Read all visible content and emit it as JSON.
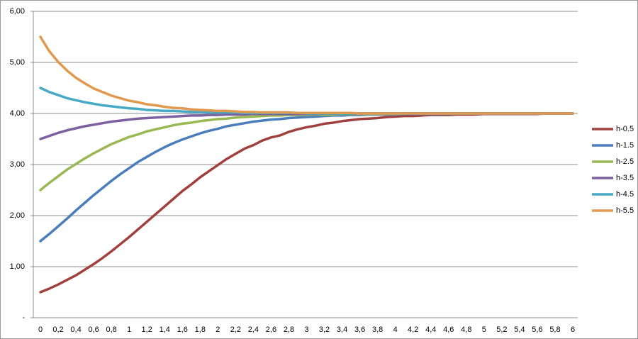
{
  "chart_data": {
    "type": "line",
    "categories": [
      "0",
      null,
      "0,2",
      null,
      "0,4",
      null,
      "0,6",
      null,
      "0,8",
      null,
      "1",
      null,
      "1,2",
      null,
      "1,4",
      null,
      "1,6",
      null,
      "1,8",
      null,
      "2",
      null,
      "2,2",
      null,
      "2,4",
      null,
      "2,6",
      null,
      "2,8",
      null,
      "3",
      null,
      "3,2",
      null,
      "3,4",
      null,
      "3,6",
      null,
      "3,8",
      null,
      "4",
      null,
      "4,2",
      null,
      "4,4",
      null,
      "4,6",
      null,
      "4,8",
      null,
      "5",
      null,
      "5,2",
      null,
      "5,4",
      null,
      "5,6",
      null,
      "5,8",
      null,
      "6"
    ],
    "series": [
      {
        "name": "h-0.5",
        "color": "#a0413d",
        "values": [
          0.5,
          0.57,
          0.65,
          0.74,
          0.83,
          0.94,
          1.05,
          1.17,
          1.3,
          1.44,
          1.58,
          1.73,
          1.88,
          2.03,
          2.18,
          2.33,
          2.48,
          2.61,
          2.75,
          2.87,
          2.99,
          3.11,
          3.21,
          3.31,
          3.38,
          3.47,
          3.53,
          3.57,
          3.64,
          3.69,
          3.73,
          3.76,
          3.8,
          3.82,
          3.85,
          3.87,
          3.89,
          3.9,
          3.91,
          3.93,
          3.94,
          3.95,
          3.95,
          3.96,
          3.97,
          3.97,
          3.97,
          3.98,
          3.98,
          3.98,
          3.99,
          3.99,
          3.99,
          3.99,
          3.99,
          3.99,
          3.99,
          4,
          4,
          4,
          4
        ]
      },
      {
        "name": "h-1.5",
        "color": "#4a7ebb",
        "values": [
          1.5,
          1.64,
          1.79,
          1.94,
          2.1,
          2.25,
          2.4,
          2.54,
          2.68,
          2.81,
          2.93,
          3.05,
          3.15,
          3.25,
          3.34,
          3.42,
          3.49,
          3.55,
          3.61,
          3.66,
          3.7,
          3.75,
          3.78,
          3.81,
          3.84,
          3.86,
          3.88,
          3.89,
          3.91,
          3.92,
          3.93,
          3.94,
          3.95,
          3.96,
          3.96,
          3.97,
          3.97,
          3.98,
          3.98,
          3.98,
          3.98,
          3.99,
          3.99,
          3.99,
          3.99,
          3.99,
          3.99,
          4,
          4,
          4,
          4,
          4,
          4,
          4,
          4,
          4,
          4,
          4,
          4,
          4,
          4
        ]
      },
      {
        "name": "h-2.5",
        "color": "#98b954",
        "values": [
          2.5,
          2.64,
          2.77,
          2.9,
          3.01,
          3.12,
          3.22,
          3.31,
          3.4,
          3.47,
          3.54,
          3.59,
          3.65,
          3.69,
          3.73,
          3.77,
          3.8,
          3.82,
          3.85,
          3.87,
          3.89,
          3.9,
          3.92,
          3.93,
          3.94,
          3.95,
          3.96,
          3.96,
          3.97,
          3.97,
          3.97,
          3.98,
          3.98,
          3.98,
          3.99,
          3.99,
          3.99,
          3.99,
          3.99,
          3.99,
          3.99,
          4,
          4,
          4,
          4,
          4,
          4,
          4,
          4,
          4,
          4,
          4,
          4,
          4,
          4,
          4,
          4,
          4,
          4,
          4,
          4
        ]
      },
      {
        "name": "h-3.5",
        "color": "#7d60a0",
        "values": [
          3.5,
          3.56,
          3.62,
          3.67,
          3.71,
          3.75,
          3.78,
          3.81,
          3.84,
          3.86,
          3.88,
          3.9,
          3.91,
          3.92,
          3.93,
          3.94,
          3.95,
          3.96,
          3.96,
          3.97,
          3.97,
          3.98,
          3.98,
          3.98,
          3.99,
          3.99,
          3.99,
          3.99,
          3.99,
          3.99,
          3.99,
          3.99,
          4,
          4,
          4,
          4,
          4,
          4,
          4,
          4,
          4,
          4,
          4,
          4,
          4,
          4,
          4,
          4,
          4,
          4,
          4,
          4,
          4,
          4,
          4,
          4,
          4,
          4,
          4,
          4,
          4
        ]
      },
      {
        "name": "h-4.5",
        "color": "#46aac5",
        "values": [
          4.5,
          4.42,
          4.36,
          4.3,
          4.26,
          4.22,
          4.19,
          4.16,
          4.14,
          4.12,
          4.1,
          4.09,
          4.07,
          4.06,
          4.05,
          4.05,
          4.04,
          4.03,
          4.03,
          4.02,
          4.02,
          4.02,
          4.02,
          4.01,
          4.01,
          4.01,
          4.01,
          4.01,
          4.01,
          4.01,
          4,
          4,
          4,
          4,
          4,
          4,
          4,
          4,
          4,
          4,
          4,
          4,
          4,
          4,
          4,
          4,
          4,
          4,
          4,
          4,
          4,
          4,
          4,
          4,
          4,
          4,
          4,
          4,
          4,
          4,
          4
        ]
      },
      {
        "name": "h-5.5",
        "color": "#e0994f",
        "values": [
          5.5,
          5.22,
          5.01,
          4.84,
          4.7,
          4.59,
          4.49,
          4.42,
          4.35,
          4.3,
          4.25,
          4.22,
          4.18,
          4.16,
          4.13,
          4.11,
          4.1,
          4.08,
          4.07,
          4.06,
          4.05,
          4.05,
          4.04,
          4.03,
          4.03,
          4.02,
          4.02,
          4.02,
          4.02,
          4.01,
          4.01,
          4.01,
          4.01,
          4.01,
          4.01,
          4.01,
          4,
          4,
          4,
          4,
          4,
          4,
          4,
          4,
          4,
          4,
          4,
          4,
          4,
          4,
          4,
          4,
          4,
          4,
          4,
          4,
          4,
          4,
          4,
          4,
          4
        ]
      }
    ],
    "ylim": [
      0,
      6
    ],
    "yticks": [
      {
        "value": 0,
        "label": "-"
      },
      {
        "value": 1,
        "label": "1,00"
      },
      {
        "value": 2,
        "label": "2,00"
      },
      {
        "value": 3,
        "label": "3,00"
      },
      {
        "value": 4,
        "label": "4,00"
      },
      {
        "value": 5,
        "label": "5,00"
      },
      {
        "value": 6,
        "label": "6,00"
      }
    ],
    "grid": true,
    "legend": "right"
  }
}
